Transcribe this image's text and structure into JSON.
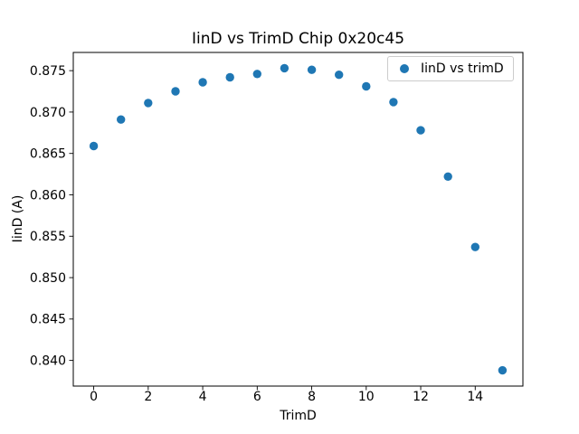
{
  "figure": {
    "title": "IinD vs TrimD Chip 0x20c45",
    "xlabel": "TrimD",
    "ylabel": "IinD (A)",
    "legend": {
      "label": "IinD vs trimD"
    }
  },
  "colors": {
    "marker": "#1f77b4",
    "axis": "#000000",
    "text": "#000000",
    "legend_border": "#cccccc",
    "background": "#ffffff"
  },
  "chart_data": {
    "type": "scatter",
    "title": "IinD vs TrimD Chip 0x20c45",
    "xlabel": "TrimD",
    "ylabel": "IinD (A)",
    "legend": [
      "IinD vs trimD"
    ],
    "legend_position": "upper right",
    "grid": false,
    "x": [
      0,
      1,
      2,
      3,
      4,
      5,
      6,
      7,
      8,
      9,
      10,
      11,
      12,
      13,
      14,
      15
    ],
    "y": [
      0.8659,
      0.8691,
      0.8711,
      0.8725,
      0.8736,
      0.8742,
      0.8746,
      0.8753,
      0.8751,
      0.8745,
      0.8731,
      0.8712,
      0.8678,
      0.8622,
      0.8537,
      0.8388
    ],
    "xlim": [
      -0.75,
      15.75
    ],
    "ylim": [
      0.8369,
      0.8772
    ],
    "x_ticks": [
      0,
      2,
      4,
      6,
      8,
      10,
      12,
      14
    ],
    "x_tick_labels": [
      "0",
      "2",
      "4",
      "6",
      "8",
      "10",
      "12",
      "14"
    ],
    "y_ticks": [
      0.84,
      0.845,
      0.85,
      0.855,
      0.86,
      0.865,
      0.87,
      0.875
    ],
    "y_tick_labels": [
      "0.840",
      "0.845",
      "0.850",
      "0.855",
      "0.860",
      "0.865",
      "0.870",
      "0.875"
    ],
    "marker_color": "#1f77b4"
  }
}
